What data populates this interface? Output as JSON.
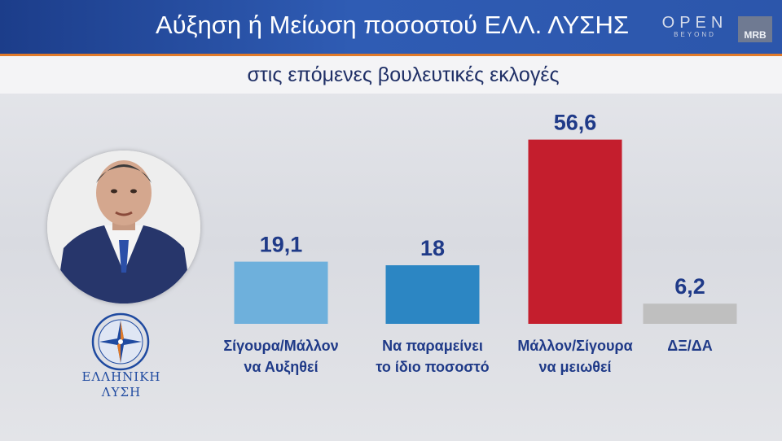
{
  "header": {
    "title": "Αύξηση ή Μείωση ποσοστού ΕΛΛ. ΛΥΣΗΣ",
    "subtitle": "στις επόμενες βουλευτικές εκλογές",
    "channel_logo_main": "OPEN",
    "channel_logo_sub": "BEYOND",
    "pollster_logo": "MRB"
  },
  "party": {
    "name_line1": "ΕΛΛΗΝΙΚΗ",
    "name_line2": "ΛΥΣΗ",
    "emblem_icon": "compass-rose-icon",
    "photo_icon": "politician-portrait-icon"
  },
  "colors": {
    "header_bg": "#2a53a6",
    "accent": "#e07a2a",
    "text_dark": "#1f3a88"
  },
  "chart_data": {
    "type": "bar",
    "title": "Αύξηση ή Μείωση ποσοστού ΕΛΛ. ΛΥΣΗΣ",
    "subtitle": "στις επόμενες βουλευτικές εκλογές",
    "categories": [
      [
        "Σίγουρα/Μάλλον",
        "να Αυξηθεί"
      ],
      [
        "Να παραμείνει",
        "το ίδιο ποσοστό"
      ],
      [
        "Μάλλον/Σίγουρα",
        "να μειωθεί"
      ],
      [
        "ΔΞ/ΔΑ"
      ]
    ],
    "values": [
      19.1,
      18,
      56.6,
      6.2
    ],
    "value_labels": [
      "19,1",
      "18",
      "56,6",
      "6,2"
    ],
    "colors": [
      "#6eb0dc",
      "#2c86c3",
      "#c41e2d",
      "#bfbfbf"
    ],
    "ylim": [
      0,
      60
    ],
    "grid": false,
    "legend": "none"
  }
}
